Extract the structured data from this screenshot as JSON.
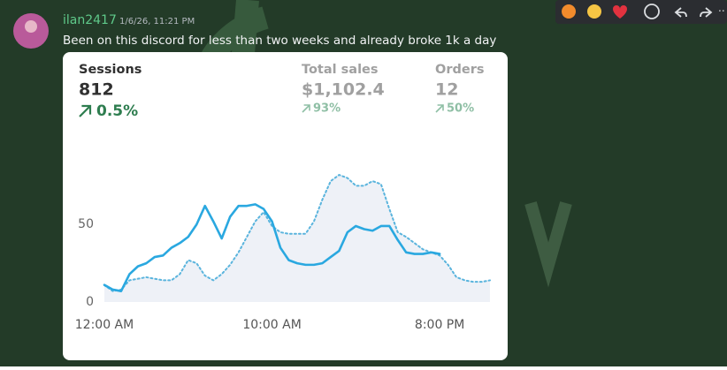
{
  "message": {
    "username": "ilan2417",
    "timestamp": "1/6/26, 11:21 PM",
    "text": "Been on this discord for less than two weeks and already broke 1k a day"
  },
  "chart_data": {
    "type": "line",
    "stats": [
      {
        "label": "Sessions",
        "value": "812",
        "change": "0.5%"
      },
      {
        "label": "Total sales",
        "value": "$1,102.4",
        "change": "93%"
      },
      {
        "label": "Orders",
        "value": "12",
        "change": "50%"
      }
    ],
    "x": [
      0,
      0.5,
      1,
      1.5,
      2,
      2.5,
      3,
      3.5,
      4,
      4.5,
      5,
      5.5,
      6,
      6.5,
      7,
      7.5,
      8,
      8.5,
      9,
      9.5,
      10,
      10.5,
      11,
      11.5,
      12,
      12.5,
      13,
      13.5,
      14,
      14.5,
      15,
      15.5,
      16,
      16.5,
      17,
      17.5,
      18,
      18.5,
      19,
      19.5,
      20,
      20.5,
      21,
      21.5,
      22,
      22.5,
      23
    ],
    "series": [
      {
        "color": "#2aa8e0",
        "style": "solid",
        "values": [
          11,
          8,
          7,
          18,
          23,
          25,
          29,
          30,
          35,
          38,
          42,
          50,
          62,
          52,
          41,
          55,
          62,
          62,
          63,
          60,
          52,
          35,
          27,
          25,
          24,
          24,
          25,
          29,
          33,
          45,
          49,
          47,
          46,
          49,
          49,
          40,
          32,
          31,
          31,
          32,
          31,
          null,
          null,
          null,
          null,
          null,
          null
        ]
      },
      {
        "color": "#5ab4dd",
        "style": "dotted",
        "area": "#eef1f7",
        "values": [
          11,
          7,
          8,
          14,
          15,
          16,
          15,
          14,
          14,
          18,
          27,
          25,
          17,
          14,
          18,
          24,
          32,
          42,
          52,
          58,
          49,
          45,
          44,
          44,
          44,
          52,
          66,
          78,
          82,
          80,
          75,
          75,
          78,
          76,
          60,
          45,
          42,
          38,
          34,
          32,
          30,
          24,
          16,
          14,
          13,
          13,
          14
        ]
      }
    ],
    "xlim": [
      0,
      23
    ],
    "xticks": [
      {
        "value": 0,
        "label": "12:00 AM"
      },
      {
        "value": 10,
        "label": "10:00 AM"
      },
      {
        "value": 20,
        "label": "8:00 PM"
      }
    ],
    "ylim": [
      0,
      90
    ],
    "yticks": [
      0,
      50
    ],
    "grid": false
  }
}
